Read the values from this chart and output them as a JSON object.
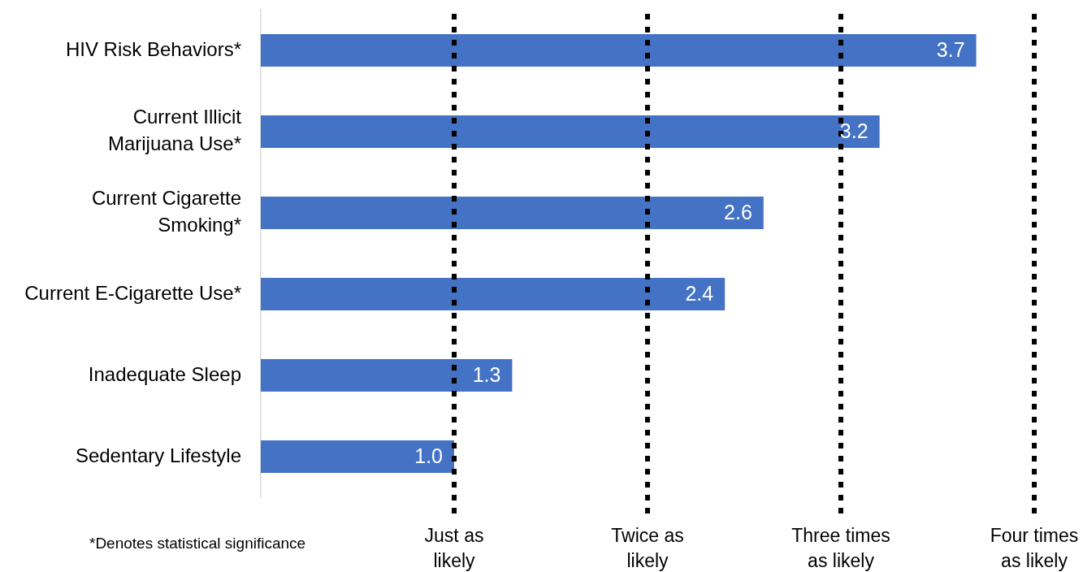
{
  "chart_data": {
    "type": "bar",
    "orientation": "horizontal",
    "categories": [
      "HIV Risk Behaviors*",
      "Current Illicit Marijuana Use*",
      "Current Cigarette Smoking*",
      "Current E-Cigarette Use*",
      "Inadequate Sleep",
      "Sedentary Lifestyle"
    ],
    "values": [
      3.7,
      3.2,
      2.6,
      2.4,
      1.3,
      1.0
    ],
    "value_labels": [
      "3.7",
      "3.2",
      "2.6",
      "2.4",
      "1.3",
      "1.0"
    ],
    "color": "#4472c4",
    "xlim": [
      0,
      4
    ],
    "grid": false,
    "legend": false,
    "tick_labels": "y",
    "ref_lines": [
      {
        "axis": "x",
        "value": 1,
        "label": "Just as likely",
        "color": "#000000",
        "line_style": "dotted"
      },
      {
        "axis": "x",
        "value": 2,
        "label": "Twice as likely",
        "color": "#000000",
        "line_style": "dotted"
      },
      {
        "axis": "x",
        "value": 3,
        "label": "Three times as likely",
        "color": "#000000",
        "line_style": "dotted"
      },
      {
        "axis": "x",
        "value": 4,
        "label": "Four times as likely",
        "color": "#000000",
        "line_style": "dotted"
      }
    ],
    "annotations": [
      "*Denotes statistical significance"
    ]
  }
}
